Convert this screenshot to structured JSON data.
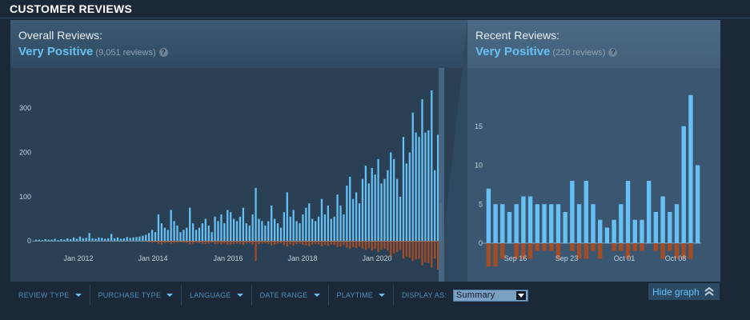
{
  "section": {
    "title": "CUSTOMER REVIEWS"
  },
  "overall": {
    "label": "Overall Reviews:",
    "summary": "Very Positive",
    "count_text": "(9,051 reviews)",
    "help_icon": "question-icon"
  },
  "recent": {
    "label": "Recent Reviews:",
    "summary": "Very Positive",
    "count_text": "(220 reviews)",
    "help_icon": "question-icon"
  },
  "filters": [
    {
      "label": "REVIEW TYPE"
    },
    {
      "label": "PURCHASE TYPE"
    },
    {
      "label": "LANGUAGE"
    },
    {
      "label": "DATE RANGE"
    },
    {
      "label": "PLAYTIME"
    }
  ],
  "display_as": {
    "label": "DISPLAY AS:",
    "selected": "Summary"
  },
  "hide_graph": {
    "label": "Hide graph",
    "icon": "double-chevron-up-icon"
  },
  "colors": {
    "positive": "#66c0f4",
    "negative": "#a34c25",
    "accent": "#66c0f4"
  },
  "chart_data": [
    {
      "type": "bar",
      "title": "",
      "x_tick_labels": [
        "Jan 2012",
        "Jan 2014",
        "Jan 2016",
        "Jan 2018",
        "Jan 2020"
      ],
      "y_tick_labels": [
        "0",
        "100",
        "200",
        "300"
      ],
      "ylim": [
        -70,
        340
      ],
      "series": [
        {
          "values": [
            3,
            3,
            2,
            4,
            3,
            3,
            5,
            2,
            4,
            3,
            6,
            4,
            8,
            5,
            10,
            6,
            7,
            18,
            6,
            5,
            8,
            7,
            5,
            6,
            16,
            6,
            8,
            5,
            6,
            9,
            7,
            8,
            9,
            10,
            12,
            14,
            18,
            25,
            20,
            60,
            40,
            30,
            25,
            70,
            45,
            35,
            20,
            25,
            30,
            75,
            40,
            25,
            30,
            40,
            50,
            35,
            20,
            55,
            45,
            60,
            40,
            70,
            65,
            50,
            45,
            55,
            75,
            40,
            35,
            60,
            120,
            50,
            45,
            35,
            45,
            80,
            50,
            40,
            30,
            65,
            110,
            55,
            70,
            45,
            40,
            60,
            75,
            85,
            50,
            45,
            55,
            95,
            60,
            80,
            50,
            55,
            105,
            80,
            60,
            125,
            145,
            95,
            110,
            85,
            140,
            170,
            130,
            165,
            150,
            185,
            130,
            140,
            160,
            200,
            185,
            140,
            100,
            235,
            175,
            200,
            290,
            245,
            235,
            320,
            245,
            250,
            340,
            160,
            240,
            85
          ]
        },
        {
          "values": [
            0,
            0,
            0,
            0,
            0,
            0,
            0,
            0,
            0,
            0,
            0,
            0,
            0,
            0,
            0,
            0,
            0,
            0,
            0,
            0,
            0,
            0,
            0,
            0,
            0,
            0,
            0,
            0,
            0,
            0,
            0,
            0,
            0,
            0,
            0,
            0,
            -3,
            -4,
            -3,
            -6,
            -8,
            -5,
            -4,
            -6,
            -5,
            -4,
            -3,
            -4,
            -5,
            -8,
            -6,
            -4,
            -5,
            -6,
            -7,
            -6,
            -4,
            -7,
            -6,
            -8,
            -6,
            -9,
            -8,
            -7,
            -6,
            -7,
            -9,
            -6,
            -5,
            -8,
            -45,
            -7,
            -6,
            -5,
            -6,
            -10,
            -8,
            -6,
            -5,
            -9,
            -12,
            -8,
            -10,
            -7,
            -6,
            -9,
            -10,
            -12,
            -8,
            -7,
            -8,
            -12,
            -9,
            -11,
            -8,
            -9,
            -14,
            -12,
            -9,
            -15,
            -18,
            -14,
            -16,
            -13,
            -17,
            -20,
            -16,
            -22,
            -18,
            -25,
            -20,
            -18,
            -22,
            -35,
            -28,
            -25,
            -20,
            -40,
            -35,
            -38,
            -45,
            -42,
            -40,
            -55,
            -48,
            -50,
            -60,
            -40,
            -65,
            -30
          ]
        }
      ]
    },
    {
      "type": "bar",
      "title": "",
      "x_tick_labels": [
        "Sep 16",
        "Sep 23",
        "Oct 01",
        "Oct 08"
      ],
      "y_tick_labels": [
        "0",
        "5",
        "10",
        "15"
      ],
      "ylim": [
        -4,
        20
      ],
      "series": [
        {
          "values": [
            7,
            5,
            5,
            4,
            5,
            6,
            6,
            5,
            5,
            5,
            5,
            4,
            8,
            5,
            8,
            5,
            3,
            2,
            3,
            5,
            8,
            3,
            3,
            8,
            4,
            6,
            4,
            5,
            15,
            19,
            10
          ]
        },
        {
          "values": [
            -3,
            -3,
            -2,
            0,
            -2,
            -2,
            -2,
            -1,
            -1,
            -1,
            -2,
            0,
            -1,
            -2,
            -2,
            -1,
            -2,
            0,
            -1,
            -1,
            -2,
            -1,
            -1,
            0,
            -1,
            -2,
            -1,
            -2,
            -2,
            -2,
            0
          ]
        }
      ]
    }
  ]
}
